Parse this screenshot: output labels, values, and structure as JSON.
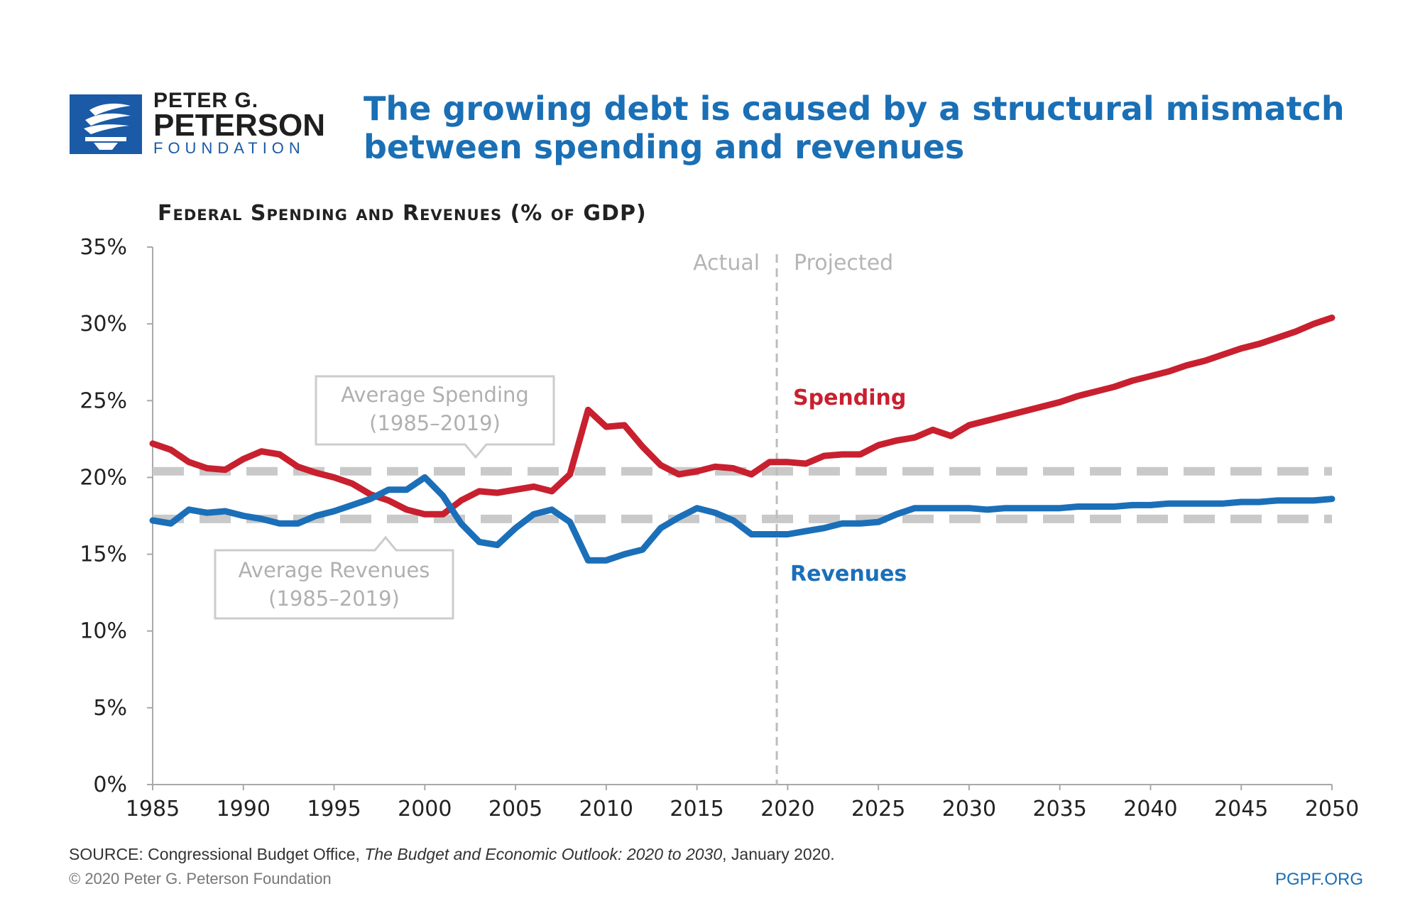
{
  "logo": {
    "line1": "PETER G.",
    "line2": "PETERSON",
    "line3": "FOUNDATION"
  },
  "headline": {
    "line1": "The growing debt is caused by a structural mismatch",
    "line2": "between spending and revenues"
  },
  "footer": {
    "source_prefix": "SOURCE: Congressional Budget Office, ",
    "source_title": "The Budget and Economic Outlook: 2020 to 2030",
    "source_suffix": ", January 2020.",
    "copyright": "© 2020 Peter G. Peterson Foundation",
    "url": "PGPF.ORG"
  },
  "colors": {
    "spending": "#c8202f",
    "revenues": "#1b6fb8",
    "average": "#c9c9c9",
    "axis": "#a9a9a9",
    "text": "#222222",
    "headline": "#1a6fb5"
  },
  "chart_data": {
    "type": "line",
    "title": "Federal Spending and Revenues (% of GDP)",
    "xlabel": "",
    "ylabel": "",
    "xlim": [
      1985,
      2050
    ],
    "ylim": [
      0,
      35
    ],
    "x_ticks": [
      1985,
      1990,
      1995,
      2000,
      2005,
      2010,
      2015,
      2020,
      2025,
      2030,
      2035,
      2040,
      2045,
      2050
    ],
    "y_ticks": [
      0,
      5,
      10,
      15,
      20,
      25,
      30,
      35
    ],
    "y_tick_labels": [
      "0%",
      "5%",
      "10%",
      "15%",
      "20%",
      "25%",
      "30%",
      "35%"
    ],
    "x": [
      1985,
      1986,
      1987,
      1988,
      1989,
      1990,
      1991,
      1992,
      1993,
      1994,
      1995,
      1996,
      1997,
      1998,
      1999,
      2000,
      2001,
      2002,
      2003,
      2004,
      2005,
      2006,
      2007,
      2008,
      2009,
      2010,
      2011,
      2012,
      2013,
      2014,
      2015,
      2016,
      2017,
      2018,
      2019,
      2020,
      2021,
      2022,
      2023,
      2024,
      2025,
      2026,
      2027,
      2028,
      2029,
      2030,
      2031,
      2032,
      2033,
      2034,
      2035,
      2036,
      2037,
      2038,
      2039,
      2040,
      2041,
      2042,
      2043,
      2044,
      2045,
      2046,
      2047,
      2048,
      2049,
      2050
    ],
    "series": [
      {
        "name": "Spending",
        "values": [
          22.2,
          21.8,
          21.0,
          20.6,
          20.5,
          21.2,
          21.7,
          21.5,
          20.7,
          20.3,
          20.0,
          19.6,
          18.9,
          18.5,
          17.9,
          17.6,
          17.6,
          18.5,
          19.1,
          19.0,
          19.2,
          19.4,
          19.1,
          20.2,
          24.4,
          23.3,
          23.4,
          22.0,
          20.8,
          20.2,
          20.4,
          20.7,
          20.6,
          20.2,
          21.0,
          21.0,
          20.9,
          21.4,
          21.5,
          21.5,
          22.1,
          22.4,
          22.6,
          23.1,
          22.7,
          23.4,
          23.7,
          24.0,
          24.3,
          24.6,
          24.9,
          25.3,
          25.6,
          25.9,
          26.3,
          26.6,
          26.9,
          27.3,
          27.6,
          28.0,
          28.4,
          28.7,
          29.1,
          29.5,
          30.0,
          30.4
        ]
      },
      {
        "name": "Revenues",
        "values": [
          17.2,
          17.0,
          17.9,
          17.7,
          17.8,
          17.5,
          17.3,
          17.0,
          17.0,
          17.5,
          17.8,
          18.2,
          18.6,
          19.2,
          19.2,
          20.0,
          18.8,
          17.0,
          15.8,
          15.6,
          16.7,
          17.6,
          17.9,
          17.1,
          14.6,
          14.6,
          15.0,
          15.3,
          16.7,
          17.4,
          18.0,
          17.7,
          17.2,
          16.3,
          16.3,
          16.3,
          16.5,
          16.7,
          17.0,
          17.0,
          17.1,
          17.6,
          18.0,
          18.0,
          18.0,
          18.0,
          17.9,
          18.0,
          18.0,
          18.0,
          18.0,
          18.1,
          18.1,
          18.1,
          18.2,
          18.2,
          18.3,
          18.3,
          18.3,
          18.3,
          18.4,
          18.4,
          18.5,
          18.5,
          18.5,
          18.6
        ]
      }
    ],
    "averages": [
      {
        "name": "Average Spending",
        "period": "(1985–2019)",
        "value": 20.4
      },
      {
        "name": "Average Revenues",
        "period": "(1985–2019)",
        "value": 17.3
      }
    ],
    "divider": {
      "year": 2019.4,
      "left_label": "Actual",
      "right_label": "Projected"
    },
    "annotations": {
      "spending_label": "Spending",
      "revenues_label": "Revenues"
    },
    "grid": false,
    "legend": "inline labels"
  }
}
